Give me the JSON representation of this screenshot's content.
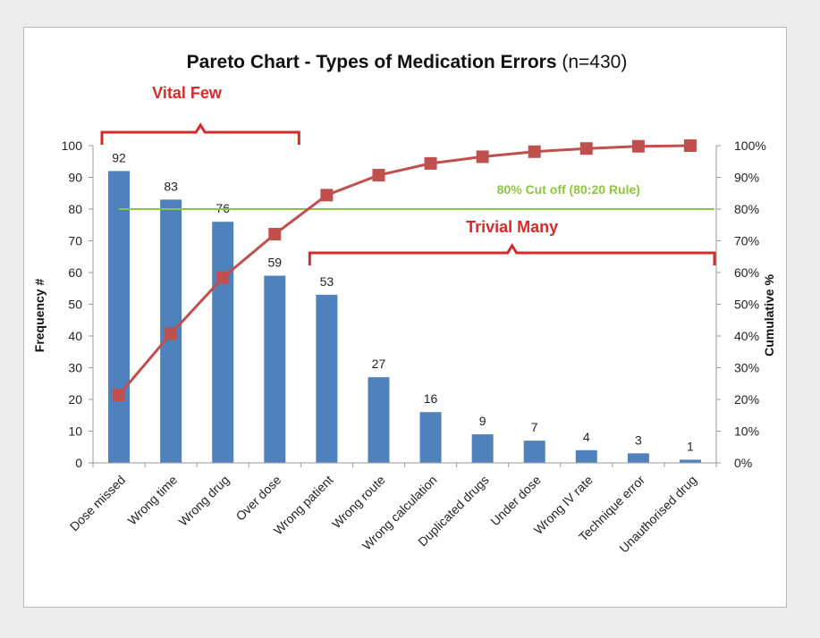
{
  "colors": {
    "bar": "#4f81bd",
    "cumulative_line": "#c0504d",
    "cumulative_marker": "#c0504d",
    "cutoff_line": "#8cc63f",
    "annotation_red": "#d42b2b",
    "annotation_green": "#8cc63f"
  },
  "chart_data": {
    "type": "bar",
    "title": "Pareto Chart - Types of Medication Errors",
    "subtitle": "(n=430)",
    "ylabel": "Frequency #",
    "y2label": "Cumulative %",
    "ylim": [
      0,
      100
    ],
    "y_ticks": [
      "0",
      "10",
      "20",
      "30",
      "40",
      "50",
      "60",
      "70",
      "80",
      "90",
      "100"
    ],
    "y2lim": [
      0,
      100
    ],
    "y2_ticks": [
      "0%",
      "10%",
      "20%",
      "30%",
      "40%",
      "50%",
      "60%",
      "70%",
      "80%",
      "90%",
      "100%"
    ],
    "categories": [
      "Dose missed",
      "Wrong time",
      "Wrong drug",
      "Over dose",
      "Wrong patient",
      "Wrong route",
      "Wrong calculation",
      "Duplicated drugs",
      "Under dose",
      "Wrong IV rate",
      "Technique error",
      "Unauthorised drug"
    ],
    "series": [
      {
        "type": "bar",
        "axis": "left",
        "values": [
          92,
          83,
          76,
          59,
          53,
          27,
          16,
          9,
          7,
          4,
          3,
          1
        ],
        "data_labels": [
          "92",
          "83",
          "76",
          "59",
          "53",
          "27",
          "16",
          "9",
          "7",
          "4",
          "3",
          "1"
        ]
      },
      {
        "type": "line",
        "axis": "right",
        "marker": "square",
        "values": [
          21.4,
          40.7,
          58.4,
          72.1,
          84.4,
          90.7,
          94.4,
          96.5,
          98.1,
          99.1,
          99.8,
          100
        ]
      }
    ],
    "cutoff": {
      "value": 80,
      "axis": "right",
      "label": "80% Cut off  (80:20 Rule)"
    },
    "annotations": [
      {
        "text": "Vital Few",
        "from_category": 0,
        "to_category": 3
      },
      {
        "text": "Trivial Many",
        "from_category": 4,
        "to_category": 11
      }
    ],
    "grid": false,
    "legend": "none"
  }
}
